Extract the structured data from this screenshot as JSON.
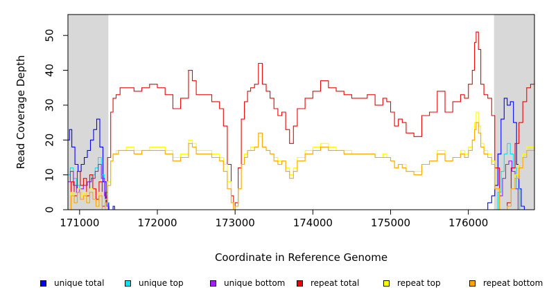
{
  "chart_data": {
    "type": "line",
    "xlabel": "Coordinate in Reference Genome",
    "ylabel": "Read Coverage Depth",
    "xlim": [
      170850,
      176850
    ],
    "ylim": [
      0,
      56
    ],
    "x_ticks": [
      171000,
      172000,
      173000,
      174000,
      175000,
      176000
    ],
    "y_ticks": [
      0,
      10,
      20,
      30,
      40,
      50
    ],
    "shaded_regions": [
      [
        170850,
        171370
      ],
      [
        176330,
        176850
      ]
    ],
    "series": [
      {
        "name": "unique total",
        "color": "#0000ff",
        "x": [
          170850,
          170870,
          170900,
          170940,
          170980,
          171020,
          171060,
          171100,
          171140,
          171180,
          171220,
          171260,
          171300,
          171340,
          171370,
          171400,
          171430,
          171450,
          176200,
          176250,
          176300,
          176340,
          176380,
          176420,
          176460,
          176500,
          176540,
          176580,
          176620,
          176650,
          176680,
          176720
        ],
        "y": [
          20,
          23,
          18,
          13,
          11,
          13,
          15,
          17,
          20,
          23,
          26,
          18,
          8,
          2,
          0,
          0,
          1,
          0,
          0,
          2,
          4,
          7,
          16,
          26,
          32,
          30,
          31,
          25,
          13,
          6,
          1,
          0
        ]
      },
      {
        "name": "unique top",
        "color": "#00e5ee",
        "x": [
          170850,
          170880,
          170920,
          170960,
          171000,
          171050,
          171100,
          171150,
          171200,
          171240,
          171280,
          171320,
          171350,
          171380,
          176340,
          176380,
          176420,
          176460,
          176500,
          176540,
          176580,
          176620,
          176660
        ],
        "y": [
          10,
          12,
          9,
          7,
          6,
          7,
          8,
          10,
          12,
          15,
          10,
          5,
          2,
          0,
          0,
          5,
          11,
          16,
          19,
          16,
          12,
          6,
          0
        ]
      },
      {
        "name": "unique bottom",
        "color": "#a020f0",
        "x": [
          170850,
          170880,
          170920,
          170960,
          171000,
          171050,
          171100,
          171150,
          171200,
          171240,
          171280,
          171320,
          171350,
          171380,
          176360,
          176400,
          176440,
          176480,
          176520,
          176560,
          176600,
          176640
        ],
        "y": [
          8,
          11,
          7,
          5,
          6,
          7,
          8,
          9,
          11,
          13,
          9,
          4,
          1,
          0,
          0,
          4,
          9,
          13,
          14,
          11,
          6,
          0
        ]
      },
      {
        "name": "repeat total",
        "color": "#ee0000",
        "x": [
          170850,
          170890,
          170930,
          170970,
          171010,
          171050,
          171090,
          171130,
          171170,
          171210,
          171250,
          171290,
          171330,
          171360,
          171400,
          171430,
          171470,
          171520,
          171600,
          171700,
          171800,
          171900,
          172000,
          172100,
          172200,
          172300,
          172400,
          172450,
          172500,
          172600,
          172700,
          172800,
          172850,
          172900,
          172950,
          172980,
          173000,
          173040,
          173080,
          173120,
          173160,
          173200,
          173250,
          173300,
          173350,
          173400,
          173450,
          173500,
          173550,
          173600,
          173650,
          173700,
          173750,
          173800,
          173900,
          174000,
          174100,
          174200,
          174300,
          174400,
          174500,
          174600,
          174700,
          174800,
          174900,
          174950,
          175000,
          175050,
          175100,
          175150,
          175200,
          175300,
          175400,
          175500,
          175600,
          175700,
          175800,
          175900,
          175950,
          176000,
          176050,
          176080,
          176100,
          176130,
          176160,
          176200,
          176250,
          176300,
          176340,
          176400,
          176450,
          176500,
          176550,
          176600,
          176650,
          176700,
          176750,
          176800,
          176850
        ],
        "y": [
          0,
          8,
          4,
          11,
          7,
          9,
          4,
          10,
          6,
          3,
          8,
          1,
          5,
          15,
          28,
          32,
          33,
          35,
          35,
          34,
          35,
          36,
          35,
          33,
          29,
          32,
          40,
          37,
          33,
          33,
          31,
          29,
          24,
          13,
          4,
          0,
          2,
          12,
          26,
          31,
          34,
          35,
          36,
          42,
          36,
          34,
          32,
          29,
          27,
          28,
          23,
          19,
          24,
          29,
          32,
          34,
          37,
          35,
          34,
          33,
          32,
          32,
          33,
          30,
          32,
          31,
          28,
          24,
          26,
          25,
          22,
          21,
          27,
          28,
          34,
          28,
          31,
          33,
          32,
          36,
          40,
          48,
          51,
          46,
          36,
          33,
          32,
          27,
          12,
          0,
          0,
          2,
          12,
          19,
          25,
          31,
          35,
          36,
          37
        ]
      },
      {
        "name": "repeat top",
        "color": "#ffff00",
        "x": [
          170850,
          170890,
          170930,
          170970,
          171010,
          171050,
          171090,
          171130,
          171170,
          171210,
          171250,
          171290,
          171330,
          171360,
          171400,
          171430,
          171470,
          171500,
          171600,
          171700,
          171800,
          171900,
          172000,
          172100,
          172200,
          172300,
          172400,
          172450,
          172500,
          172600,
          172700,
          172800,
          172850,
          172900,
          172950,
          172980,
          173000,
          173040,
          173080,
          173120,
          173160,
          173200,
          173250,
          173300,
          173350,
          173400,
          173450,
          173500,
          173550,
          173600,
          173650,
          173700,
          173750,
          173800,
          173900,
          174000,
          174100,
          174200,
          174300,
          174400,
          174500,
          174600,
          174700,
          174800,
          174900,
          174950,
          175000,
          175050,
          175100,
          175150,
          175200,
          175300,
          175400,
          175500,
          175600,
          175700,
          175800,
          175900,
          175950,
          176000,
          176050,
          176080,
          176100,
          176130,
          176160,
          176200,
          176250,
          176300,
          176340,
          176400,
          176450,
          176500,
          176550,
          176600,
          176650,
          176700,
          176750,
          176800,
          176850
        ],
        "y": [
          0,
          5,
          2,
          6,
          4,
          5,
          2,
          6,
          3,
          1,
          5,
          0,
          3,
          8,
          14,
          16,
          17,
          17,
          18,
          17,
          17,
          18,
          18,
          17,
          15,
          16,
          20,
          19,
          17,
          17,
          16,
          15,
          13,
          8,
          2,
          0,
          1,
          6,
          13,
          16,
          17,
          18,
          18,
          21,
          18,
          17,
          16,
          15,
          14,
          14,
          12,
          10,
          12,
          15,
          17,
          18,
          19,
          18,
          17,
          17,
          16,
          16,
          16,
          15,
          16,
          15,
          14,
          12,
          13,
          13,
          11,
          11,
          13,
          14,
          17,
          14,
          15,
          17,
          16,
          18,
          20,
          25,
          28,
          24,
          19,
          17,
          16,
          14,
          6,
          0,
          0,
          1,
          6,
          10,
          13,
          16,
          18,
          18,
          19
        ]
      },
      {
        "name": "repeat bottom",
        "color": "#ffa500",
        "x": [
          170850,
          170890,
          170930,
          170970,
          171010,
          171050,
          171090,
          171130,
          171170,
          171210,
          171250,
          171290,
          171330,
          171360,
          171400,
          171430,
          171470,
          171500,
          171600,
          171700,
          171800,
          171900,
          172000,
          172100,
          172200,
          172300,
          172400,
          172450,
          172500,
          172600,
          172700,
          172800,
          172850,
          172900,
          172950,
          172980,
          173000,
          173040,
          173080,
          173120,
          173160,
          173200,
          173250,
          173300,
          173350,
          173400,
          173450,
          173500,
          173550,
          173600,
          173650,
          173700,
          173750,
          173800,
          173900,
          174000,
          174100,
          174200,
          174300,
          174400,
          174500,
          174600,
          174700,
          174800,
          174900,
          174950,
          175000,
          175050,
          175100,
          175150,
          175200,
          175300,
          175400,
          175500,
          175600,
          175700,
          175800,
          175900,
          175950,
          176000,
          176050,
          176080,
          176100,
          176130,
          176160,
          176200,
          176250,
          176300,
          176340,
          176400,
          176450,
          176500,
          176550,
          176600,
          176650,
          176700,
          176750,
          176800,
          176850
        ],
        "y": [
          0,
          4,
          2,
          5,
          3,
          4,
          2,
          5,
          3,
          1,
          4,
          0,
          2,
          7,
          14,
          16,
          16,
          17,
          17,
          16,
          17,
          17,
          17,
          16,
          14,
          15,
          19,
          18,
          16,
          16,
          15,
          14,
          11,
          6,
          2,
          0,
          1,
          6,
          13,
          15,
          17,
          17,
          18,
          22,
          18,
          17,
          16,
          14,
          13,
          14,
          11,
          9,
          11,
          14,
          16,
          17,
          18,
          17,
          17,
          16,
          16,
          16,
          16,
          15,
          15,
          15,
          14,
          12,
          13,
          12,
          11,
          10,
          13,
          14,
          16,
          14,
          15,
          16,
          15,
          17,
          20,
          23,
          25,
          22,
          18,
          16,
          15,
          13,
          6,
          0,
          0,
          1,
          6,
          9,
          12,
          15,
          17,
          17,
          18
        ]
      }
    ],
    "legend": [
      {
        "label": "unique total",
        "color": "#0000ff"
      },
      {
        "label": "unique top",
        "color": "#00e5ee"
      },
      {
        "label": "unique bottom",
        "color": "#a020f0"
      },
      {
        "label": "repeat total",
        "color": "#ee0000"
      },
      {
        "label": "repeat top",
        "color": "#ffff00"
      },
      {
        "label": "repeat bottom",
        "color": "#ffa500"
      }
    ],
    "legend_position": "bottom",
    "grid": false
  }
}
